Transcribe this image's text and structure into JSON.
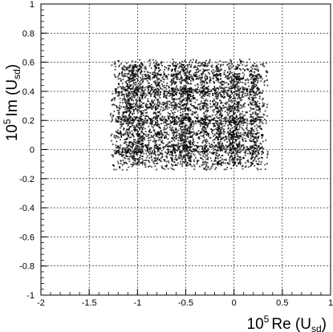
{
  "chart_data": {
    "type": "scatter",
    "title": "",
    "xlabel": {
      "factor": "10",
      "exponent": "5",
      "quantity": "Re (U",
      "subscript": "sd",
      "close": ")"
    },
    "ylabel": {
      "factor": "10",
      "exponent": "5",
      "quantity": "Im (U",
      "subscript": "sd",
      "close": ")"
    },
    "xlim": [
      -2,
      1
    ],
    "ylim": [
      -1,
      1
    ],
    "xticks": [
      "-2",
      "-1.5",
      "-1",
      "-0.5",
      "0",
      "0.5",
      "1"
    ],
    "yticks": [
      "-1",
      "-0.8",
      "-0.6",
      "-0.4",
      "-0.2",
      "0",
      "0.2",
      "0.4",
      "0.6",
      "0.8",
      "1"
    ],
    "grid": true,
    "point_color": "#000000",
    "cloud": {
      "x_range": [
        -1.28,
        0.35
      ],
      "y_range": [
        -0.14,
        0.62
      ],
      "grid_lines_x": [
        -1.0,
        -0.5,
        0.0
      ],
      "grid_lines_y": [
        0.0,
        0.2,
        0.4
      ]
    }
  }
}
